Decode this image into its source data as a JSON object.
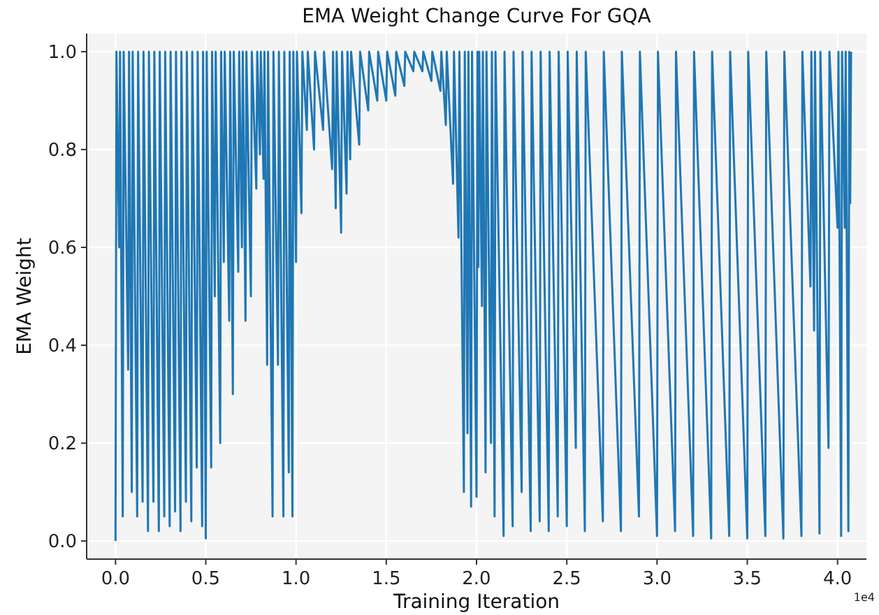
{
  "chart_data": {
    "type": "line",
    "title": "EMA Weight Change Curve For GQA",
    "xlabel": "Training Iteration",
    "ylabel": "EMA Weight",
    "annotations": [
      "1e4"
    ],
    "xlim": [
      -0.16,
      4.16
    ],
    "xticks": [
      {
        "value": 0,
        "label": "0.0"
      },
      {
        "value": 0.5,
        "label": "0.5"
      },
      {
        "value": 1,
        "label": "1.0"
      },
      {
        "value": 1.5,
        "label": "1.5"
      },
      {
        "value": 2,
        "label": "2.0"
      },
      {
        "value": 2.5,
        "label": "2.5"
      },
      {
        "value": 3,
        "label": "3.0"
      },
      {
        "value": 3.5,
        "label": "3.5"
      },
      {
        "value": 4,
        "label": "4.0"
      }
    ],
    "ylim": [
      -0.037,
      1.037
    ],
    "yticks": [
      {
        "value": 0,
        "label": "0.0"
      },
      {
        "value": 0.2,
        "label": "0.2"
      },
      {
        "value": 0.4,
        "label": "0.4"
      },
      {
        "value": 0.6,
        "label": "0.6"
      },
      {
        "value": 0.8,
        "label": "0.8"
      },
      {
        "value": 1,
        "label": "1.0"
      }
    ],
    "grid": true,
    "series": [
      {
        "color": "#1f77b4",
        "x": [
          0,
          0.005,
          0.02,
          0.025,
          0.04,
          0.045,
          0.07,
          0.075,
          0.09,
          0.095,
          0.12,
          0.125,
          0.15,
          0.155,
          0.18,
          0.185,
          0.21,
          0.215,
          0.24,
          0.245,
          0.27,
          0.275,
          0.3,
          0.305,
          0.33,
          0.335,
          0.36,
          0.365,
          0.39,
          0.395,
          0.42,
          0.425,
          0.45,
          0.455,
          0.48,
          0.485,
          0.5,
          0.505,
          0.53,
          0.535,
          0.55,
          0.555,
          0.58,
          0.585,
          0.6,
          0.605,
          0.63,
          0.635,
          0.65,
          0.655,
          0.68,
          0.685,
          0.7,
          0.705,
          0.72,
          0.725,
          0.75,
          0.755,
          0.78,
          0.785,
          0.8,
          0.805,
          0.82,
          0.825,
          0.84,
          0.845,
          0.87,
          0.875,
          0.9,
          0.905,
          0.93,
          0.935,
          0.96,
          0.965,
          0.98,
          0.985,
          1.0,
          1.005,
          1.03,
          1.035,
          1.06,
          1.065,
          1.1,
          1.105,
          1.15,
          1.155,
          1.2,
          1.205,
          1.22,
          1.225,
          1.25,
          1.255,
          1.28,
          1.285,
          1.3,
          1.305,
          1.35,
          1.355,
          1.4,
          1.405,
          1.45,
          1.455,
          1.5,
          1.505,
          1.55,
          1.555,
          1.6,
          1.605,
          1.65,
          1.655,
          1.7,
          1.705,
          1.75,
          1.755,
          1.8,
          1.805,
          1.83,
          1.835,
          1.87,
          1.875,
          1.9,
          1.905,
          1.93,
          1.935,
          1.95,
          1.955,
          1.97,
          1.975,
          2.0,
          2.005,
          2.01,
          2.015,
          2.03,
          2.035,
          2.05,
          2.055,
          2.08,
          2.085,
          2.1,
          2.105,
          2.15,
          2.155,
          2.2,
          2.205,
          2.25,
          2.255,
          2.3,
          2.305,
          2.35,
          2.355,
          2.4,
          2.405,
          2.45,
          2.455,
          2.5,
          2.505,
          2.55,
          2.555,
          2.6,
          2.605,
          2.7,
          2.705,
          2.8,
          2.805,
          2.9,
          2.905,
          3.0,
          3.005,
          3.1,
          3.105,
          3.2,
          3.205,
          3.3,
          3.305,
          3.4,
          3.405,
          3.5,
          3.505,
          3.6,
          3.605,
          3.7,
          3.705,
          3.8,
          3.805,
          3.85,
          3.855,
          3.87,
          3.875,
          3.9,
          3.905,
          3.95,
          3.955,
          4.0,
          4.005,
          4.02,
          4.025,
          4.04,
          4.045,
          4.06,
          4.065,
          4.07,
          4.075
        ],
        "values": [
          0,
          1,
          0.6,
          1,
          0.05,
          1,
          0.35,
          1,
          0.1,
          1,
          0.05,
          1,
          0.08,
          1,
          0.02,
          1,
          0.08,
          1,
          0.02,
          1,
          0.05,
          1,
          0.03,
          1,
          0.06,
          1,
          0.02,
          1,
          0.08,
          1,
          0.04,
          1,
          0.15,
          1,
          0.03,
          1,
          0.005,
          1,
          0.15,
          1,
          0.5,
          1,
          0.2,
          1,
          0.57,
          1,
          0.45,
          1,
          0.3,
          1,
          0.55,
          1,
          0.6,
          1,
          0.45,
          1,
          0.5,
          1,
          0.72,
          1,
          0.79,
          1,
          0.74,
          1,
          0.36,
          1,
          0.05,
          1,
          0.36,
          1,
          0.05,
          1,
          0.14,
          1,
          0.05,
          1,
          0.57,
          1,
          0.67,
          1,
          0.84,
          1,
          0.8,
          1,
          0.84,
          1,
          0.76,
          1,
          0.68,
          1,
          0.63,
          1,
          0.71,
          1,
          0.78,
          1,
          0.81,
          1,
          0.88,
          1,
          0.9,
          1,
          0.9,
          1,
          0.91,
          1,
          0.93,
          1,
          0.96,
          1,
          0.96,
          1,
          0.94,
          1,
          0.92,
          1,
          0.85,
          1,
          0.73,
          1,
          0.62,
          1,
          0.1,
          1,
          0.22,
          1,
          0.07,
          1,
          0.09,
          1,
          0.56,
          1,
          0.48,
          1,
          0.14,
          1,
          0.2,
          1,
          0.05,
          1,
          0.01,
          1,
          0.03,
          1,
          0.1,
          1,
          0.02,
          1,
          0.04,
          1,
          0.02,
          1,
          0.05,
          1,
          0.03,
          1,
          0.19,
          1,
          0.02,
          1,
          0.04,
          1,
          0.02,
          1,
          0.05,
          1,
          0.01,
          1,
          0.02,
          1,
          0.01,
          1,
          0.005,
          1,
          0.01,
          1,
          0.005,
          1,
          0.01,
          1,
          0.005,
          1,
          0.01,
          1,
          0.52,
          1,
          0.43,
          1,
          0.015,
          1,
          0.19,
          1,
          0.64,
          1,
          0.01,
          1,
          0.64,
          1,
          0.02,
          1,
          0.69,
          1
        ]
      }
    ]
  }
}
